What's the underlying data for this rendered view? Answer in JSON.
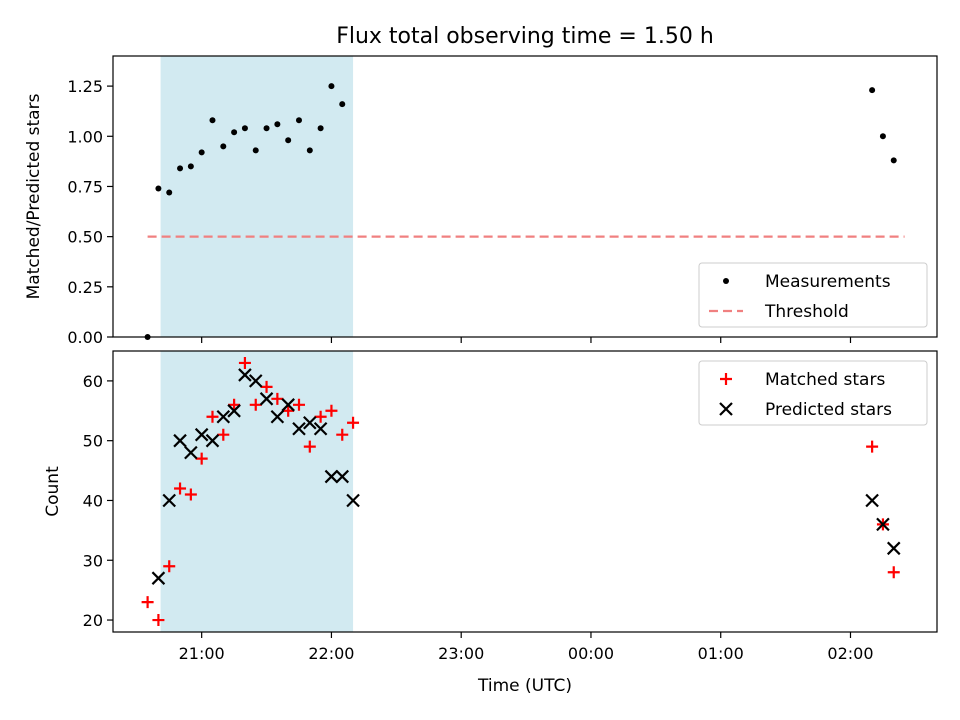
{
  "figure": {
    "title": "Flux total observing time = 1.50 h",
    "xlabel": "Time (UTC)"
  },
  "colors": {
    "measurements": "#000000",
    "threshold": "#f08080",
    "matched": "#ff0000",
    "predicted": "#000000",
    "observing_window": "#add8e6"
  },
  "chart_data": [
    {
      "type": "scatter",
      "ylabel": "Matched/Predicted stars",
      "xlim": [
        "20:19",
        "02:40"
      ],
      "ylim": [
        0,
        1.4
      ],
      "yticks": [
        0.0,
        0.25,
        0.5,
        0.75,
        1.0,
        1.25
      ],
      "ytick_labels": [
        "0.00",
        "0.25",
        "0.50",
        "0.75",
        "1.00",
        "1.25"
      ],
      "grid": false,
      "legend": "lower-right",
      "shaded_span": [
        "20:41",
        "22:10"
      ],
      "series": [
        {
          "name": "Measurements",
          "marker": "dot",
          "x": [
            "20:35",
            "20:40",
            "20:45",
            "20:50",
            "20:55",
            "21:00",
            "21:05",
            "21:10",
            "21:15",
            "21:20",
            "21:25",
            "21:30",
            "21:35",
            "21:40",
            "21:45",
            "21:50",
            "21:55",
            "22:00",
            "22:05",
            "02:10",
            "02:15",
            "02:20"
          ],
          "y": [
            0.0,
            0.74,
            0.72,
            0.84,
            0.85,
            0.92,
            1.08,
            0.95,
            1.02,
            1.04,
            0.93,
            1.04,
            1.06,
            0.98,
            1.08,
            0.93,
            1.04,
            1.25,
            1.16,
            1.23,
            1.0,
            0.88
          ]
        },
        {
          "name": "Threshold",
          "style": "dashed",
          "x": [
            "20:35",
            "02:25"
          ],
          "y": [
            0.5,
            0.5
          ]
        }
      ]
    },
    {
      "type": "scatter",
      "ylabel": "Count",
      "xlim": [
        "20:19",
        "02:40"
      ],
      "ylim": [
        18,
        65
      ],
      "yticks": [
        20,
        30,
        40,
        50,
        60
      ],
      "ytick_labels": [
        "20",
        "30",
        "40",
        "50",
        "60"
      ],
      "xticks": [
        "21:00",
        "22:00",
        "23:00",
        "00:00",
        "01:00",
        "02:00"
      ],
      "xtick_labels": [
        "21:00",
        "22:00",
        "23:00",
        "00:00",
        "01:00",
        "02:00"
      ],
      "grid": false,
      "legend": "top-right",
      "shaded_span": [
        "20:41",
        "22:10"
      ],
      "series": [
        {
          "name": "Matched stars",
          "marker": "plus",
          "x": [
            "20:35",
            "20:40",
            "20:45",
            "20:50",
            "20:55",
            "21:00",
            "21:05",
            "21:10",
            "21:15",
            "21:20",
            "21:25",
            "21:30",
            "21:35",
            "21:40",
            "21:45",
            "21:50",
            "21:55",
            "22:00",
            "22:05",
            "22:10",
            "02:10",
            "02:15",
            "02:20"
          ],
          "y": [
            23,
            20,
            29,
            42,
            41,
            47,
            54,
            51,
            56,
            63,
            56,
            59,
            57,
            55,
            56,
            49,
            54,
            55,
            51,
            53,
            49,
            36,
            28
          ]
        },
        {
          "name": "Predicted stars",
          "marker": "x",
          "x": [
            "20:40",
            "20:45",
            "20:50",
            "20:55",
            "21:00",
            "21:05",
            "21:10",
            "21:15",
            "21:20",
            "21:25",
            "21:30",
            "21:35",
            "21:40",
            "21:45",
            "21:50",
            "21:55",
            "22:00",
            "22:05",
            "22:10",
            "02:10",
            "02:15",
            "02:20"
          ],
          "y": [
            27,
            40,
            50,
            48,
            51,
            50,
            54,
            55,
            61,
            60,
            57,
            54,
            56,
            52,
            53,
            52,
            44,
            44,
            40,
            40,
            36,
            32
          ]
        }
      ]
    }
  ]
}
